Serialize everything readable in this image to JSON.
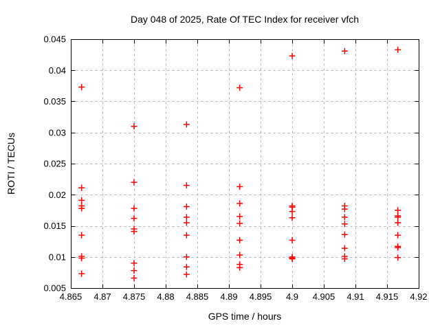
{
  "chart_data": {
    "type": "scatter",
    "title": "Day 048 of 2025, Rate Of TEC Index for receiver vfch",
    "xlabel": "GPS time / hours",
    "ylabel": "ROTI / TECUs",
    "xlim": [
      4.865,
      4.92
    ],
    "ylim": [
      0.005,
      0.045
    ],
    "xticks": {
      "values": [
        4.865,
        4.87,
        4.875,
        4.88,
        4.885,
        4.89,
        4.895,
        4.9,
        4.905,
        4.91,
        4.915,
        4.92
      ],
      "labels": [
        "4.865",
        "4.87",
        "4.875",
        "4.88",
        "4.885",
        "4.89",
        "4.895",
        "4.9",
        "4.905",
        "4.91",
        "4.915",
        "4.92"
      ]
    },
    "yticks": {
      "values": [
        0.005,
        0.01,
        0.015,
        0.02,
        0.025,
        0.03,
        0.035,
        0.04,
        0.045
      ],
      "labels": [
        "0.005",
        "0.01",
        "0.015",
        "0.02",
        "0.025",
        "0.03",
        "0.035",
        "0.04",
        "0.045"
      ]
    },
    "grid": true,
    "legend": "none",
    "marker": {
      "shape": "plus",
      "color": "#ff0000",
      "size": 9
    },
    "colors": {
      "axis": "#000000",
      "grid": "#b3b3b3",
      "background": "#ffffff"
    },
    "series": [
      {
        "name": "ROTI",
        "points": [
          [
            4.8667,
            0.0373
          ],
          [
            4.8667,
            0.0211
          ],
          [
            4.8667,
            0.0191
          ],
          [
            4.8667,
            0.0182
          ],
          [
            4.8667,
            0.0178
          ],
          [
            4.8667,
            0.0135
          ],
          [
            4.8667,
            0.0101
          ],
          [
            4.8667,
            0.0098
          ],
          [
            4.8667,
            0.0073
          ],
          [
            4.875,
            0.031
          ],
          [
            4.875,
            0.022
          ],
          [
            4.875,
            0.0178
          ],
          [
            4.875,
            0.0162
          ],
          [
            4.875,
            0.0145
          ],
          [
            4.875,
            0.0141
          ],
          [
            4.875,
            0.009
          ],
          [
            4.875,
            0.0078
          ],
          [
            4.875,
            0.0066
          ],
          [
            4.8833,
            0.0313
          ],
          [
            4.8833,
            0.0215
          ],
          [
            4.8833,
            0.0181
          ],
          [
            4.8833,
            0.0164
          ],
          [
            4.8833,
            0.0155
          ],
          [
            4.8833,
            0.0135
          ],
          [
            4.8833,
            0.01
          ],
          [
            4.8833,
            0.0084
          ],
          [
            4.8833,
            0.0072
          ],
          [
            4.8917,
            0.0372
          ],
          [
            4.8917,
            0.0213
          ],
          [
            4.8917,
            0.0186
          ],
          [
            4.8917,
            0.0165
          ],
          [
            4.8917,
            0.0154
          ],
          [
            4.8917,
            0.0127
          ],
          [
            4.8917,
            0.0103
          ],
          [
            4.8917,
            0.0088
          ],
          [
            4.8917,
            0.0083
          ],
          [
            4.9,
            0.0423
          ],
          [
            4.9,
            0.0182
          ],
          [
            4.9,
            0.018
          ],
          [
            4.9,
            0.0173
          ],
          [
            4.9,
            0.0163
          ],
          [
            4.9,
            0.0127
          ],
          [
            4.9,
            0.01
          ],
          [
            4.9,
            0.0098
          ],
          [
            4.9,
            0.0097
          ],
          [
            4.9083,
            0.0431
          ],
          [
            4.9083,
            0.0182
          ],
          [
            4.9083,
            0.0177
          ],
          [
            4.9083,
            0.0164
          ],
          [
            4.9083,
            0.0153
          ],
          [
            4.9083,
            0.0136
          ],
          [
            4.9083,
            0.0114
          ],
          [
            4.9083,
            0.0101
          ],
          [
            4.9083,
            0.0097
          ],
          [
            4.9167,
            0.0433
          ],
          [
            4.9167,
            0.0175
          ],
          [
            4.9167,
            0.0166
          ],
          [
            4.9167,
            0.0164
          ],
          [
            4.9167,
            0.0155
          ],
          [
            4.9167,
            0.0135
          ],
          [
            4.9167,
            0.0117
          ],
          [
            4.9167,
            0.0115
          ],
          [
            4.9167,
            0.0099
          ]
        ]
      }
    ]
  }
}
